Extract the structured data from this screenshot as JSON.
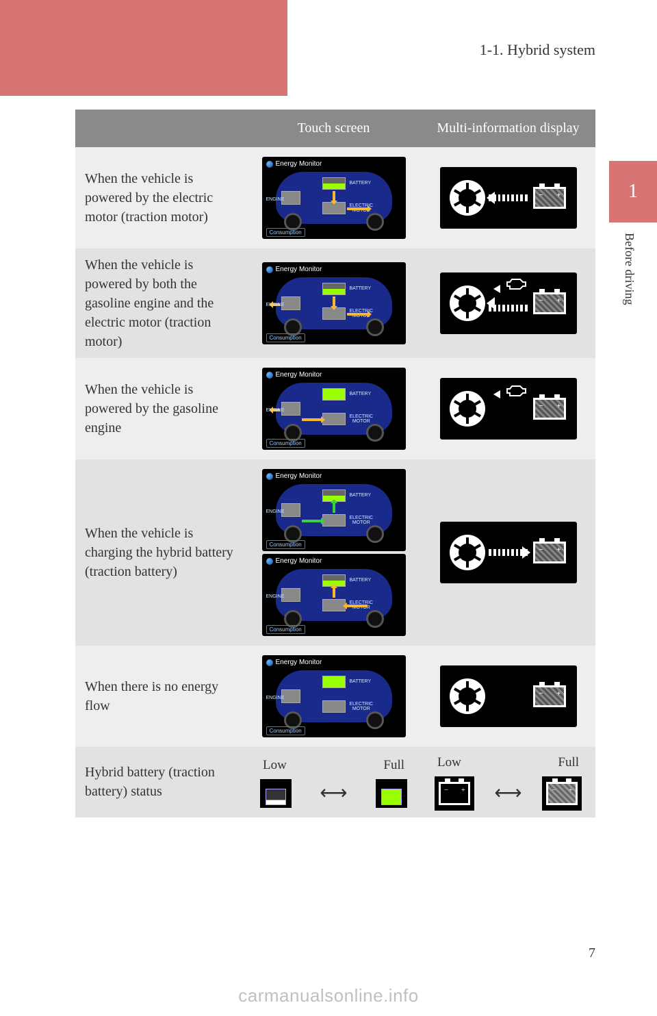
{
  "page": {
    "section_header": "1-1. Hybrid system",
    "chapter_number": "1",
    "side_label": "Before driving",
    "page_number": "7",
    "watermark": "carmanualsonline.info"
  },
  "table": {
    "headers": {
      "blank": "",
      "touch_screen": "Touch screen",
      "mid": "Multi-information display"
    },
    "rows": [
      {
        "desc": "When the vehicle is powered by the electric motor (traction motor)",
        "energy_monitors": [
          {
            "battery": "half",
            "arrows": [
              {
                "type": "batt-to-motor",
                "color": "#f7b733"
              },
              {
                "type": "motor-to-wheel",
                "color": "#f7b733"
              }
            ]
          }
        ],
        "mid": {
          "wheel": true,
          "battery": true,
          "engine": false,
          "flow": "batt-to-wheel"
        }
      },
      {
        "desc": "When the vehicle is powered by both the gasoline engine and the electric motor (traction motor)",
        "energy_monitors": [
          {
            "battery": "half",
            "arrows": [
              {
                "type": "engine-to-wheel",
                "color": "#f7b733"
              },
              {
                "type": "batt-to-motor",
                "color": "#f7b733"
              },
              {
                "type": "motor-to-wheel",
                "color": "#f7b733"
              }
            ]
          }
        ],
        "mid": {
          "wheel": true,
          "battery": true,
          "engine": true,
          "flow": "both-to-wheel"
        }
      },
      {
        "desc": "When the vehicle is powered by the gasoline engine",
        "energy_monitors": [
          {
            "battery": "full",
            "arrows": [
              {
                "type": "engine-to-wheel",
                "color": "#f7b733"
              },
              {
                "type": "engine-to-motor",
                "color": "#f7b733"
              }
            ]
          }
        ],
        "mid": {
          "wheel": true,
          "battery": true,
          "engine": true,
          "flow": "engine-to-wheel"
        }
      },
      {
        "desc": "When the vehicle is charging the hybrid battery (traction battery)",
        "energy_monitors": [
          {
            "battery": "half",
            "arrows": [
              {
                "type": "motor-to-batt",
                "color": "#3ecf3e"
              },
              {
                "type": "engine-to-motor",
                "color": "#3ecf3e"
              }
            ]
          },
          {
            "battery": "half",
            "arrows": [
              {
                "type": "wheel-to-motor",
                "color": "#f7b733"
              },
              {
                "type": "motor-to-batt",
                "color": "#f7b733"
              }
            ]
          }
        ],
        "mid": {
          "wheel": true,
          "battery": true,
          "engine": false,
          "flow": "wheel-to-batt"
        }
      },
      {
        "desc": "When there is no energy flow",
        "energy_monitors": [
          {
            "battery": "full",
            "arrows": []
          }
        ],
        "mid": {
          "wheel": true,
          "battery": true,
          "engine": false,
          "flow": "none"
        }
      },
      {
        "desc": "Hybrid battery (traction battery) status",
        "status": {
          "low_label": "Low",
          "full_label": "Full"
        }
      }
    ]
  },
  "energy_monitor_labels": {
    "title": "Energy Monitor",
    "engine": "ENGINE",
    "battery": "BATTERY",
    "motor": "ELECTRIC\nMOTOR",
    "consumption": "Consumption"
  },
  "colors": {
    "accent": "#d77474",
    "header_bg": "#8a8a8a",
    "row_bg": "#eeeeee",
    "row_alt_bg": "#e2e2e2",
    "car_body": "#1a2a8a",
    "arrow_orange": "#f7b733",
    "arrow_green": "#3ecf3e",
    "batt_full": "#99ff00"
  }
}
